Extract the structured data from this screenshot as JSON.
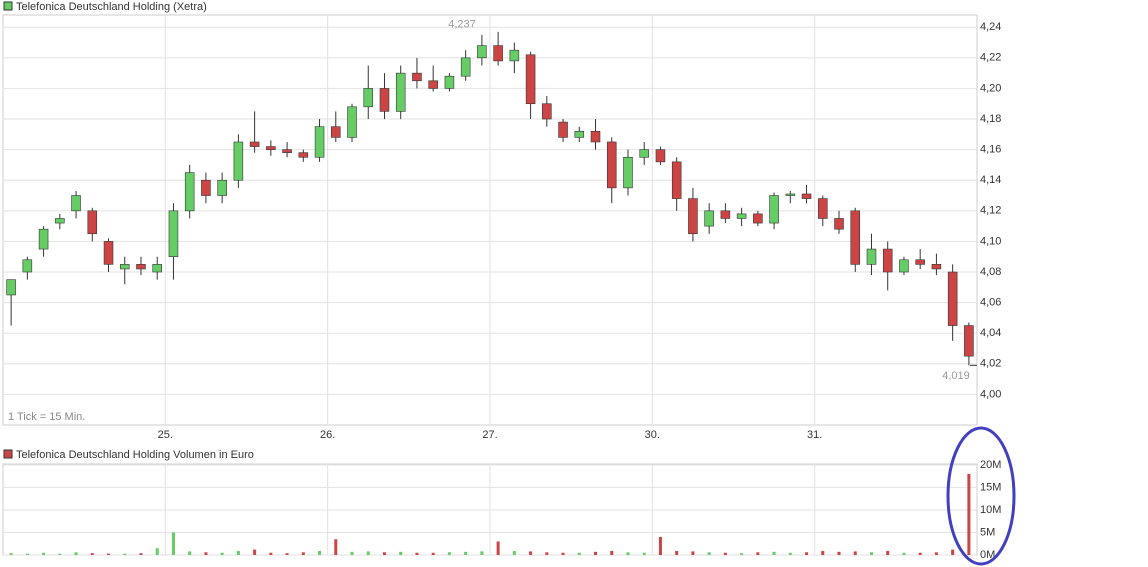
{
  "chart_data": [
    {
      "type": "candlestick",
      "title": "Telefonica Deutschland Holding (Xetra)",
      "note": "1 Tick = 15 Min.",
      "x": [
        0.05,
        0.15,
        0.25,
        0.35,
        0.45,
        0.55,
        0.65,
        0.75,
        0.85,
        0.95,
        1.05,
        1.15,
        1.25,
        1.35,
        1.45,
        1.55,
        1.65,
        1.75,
        1.85,
        1.95,
        2.05,
        2.15,
        2.25,
        2.35,
        2.45,
        2.55,
        2.65,
        2.75,
        2.85,
        2.95,
        3.05,
        3.15,
        3.25,
        3.35,
        3.45,
        3.55,
        3.65,
        3.75,
        3.85,
        3.95,
        4.05,
        4.15,
        4.25,
        4.35,
        4.45,
        4.55,
        4.65,
        4.75,
        4.85,
        4.95,
        5.05,
        5.15,
        5.25,
        5.35,
        5.45,
        5.55,
        5.65,
        5.75,
        5.85,
        5.95
      ],
      "open": [
        4.065,
        4.08,
        4.095,
        4.112,
        4.12,
        4.12,
        4.1,
        4.082,
        4.085,
        4.08,
        4.09,
        4.12,
        4.14,
        4.13,
        4.14,
        4.165,
        4.162,
        4.16,
        4.158,
        4.155,
        4.175,
        4.168,
        4.188,
        4.2,
        4.185,
        4.21,
        4.205,
        4.2,
        4.208,
        4.22,
        4.228,
        4.218,
        4.222,
        4.19,
        4.178,
        4.168,
        4.172,
        4.165,
        4.135,
        4.155,
        4.16,
        4.152,
        4.128,
        4.11,
        4.12,
        4.115,
        4.118,
        4.112,
        4.13,
        4.131,
        4.128,
        4.115,
        4.12,
        4.085,
        4.095,
        4.08,
        4.088,
        4.085,
        4.08,
        4.045
      ],
      "high": [
        4.075,
        4.09,
        4.11,
        4.118,
        4.133,
        4.122,
        4.102,
        4.09,
        4.09,
        4.09,
        4.125,
        4.15,
        4.145,
        4.145,
        4.17,
        4.185,
        4.166,
        4.165,
        4.16,
        4.18,
        4.185,
        4.19,
        4.215,
        4.21,
        4.215,
        4.22,
        4.215,
        4.21,
        4.225,
        4.235,
        4.237,
        4.23,
        4.224,
        4.195,
        4.18,
        4.175,
        4.18,
        4.168,
        4.16,
        4.165,
        4.162,
        4.155,
        4.135,
        4.125,
        4.125,
        4.122,
        4.12,
        4.132,
        4.133,
        4.137,
        4.13,
        4.12,
        4.122,
        4.105,
        4.1,
        4.09,
        4.095,
        4.092,
        4.085,
        4.047
      ],
      "low": [
        4.045,
        4.075,
        4.09,
        4.108,
        4.115,
        4.1,
        4.08,
        4.072,
        4.078,
        4.075,
        4.075,
        4.115,
        4.125,
        4.125,
        4.135,
        4.158,
        4.156,
        4.155,
        4.152,
        4.152,
        4.165,
        4.165,
        4.18,
        4.18,
        4.18,
        4.2,
        4.198,
        4.198,
        4.205,
        4.215,
        4.215,
        4.21,
        4.18,
        4.175,
        4.165,
        4.165,
        4.16,
        4.125,
        4.13,
        4.15,
        4.15,
        4.12,
        4.1,
        4.105,
        4.112,
        4.11,
        4.11,
        4.108,
        4.125,
        4.125,
        4.11,
        4.105,
        4.08,
        4.078,
        4.068,
        4.078,
        4.082,
        4.078,
        4.035,
        4.019
      ],
      "close": [
        4.075,
        4.088,
        4.108,
        4.115,
        4.13,
        4.105,
        4.085,
        4.085,
        4.082,
        4.085,
        4.12,
        4.145,
        4.13,
        4.14,
        4.165,
        4.162,
        4.16,
        4.158,
        4.155,
        4.175,
        4.168,
        4.188,
        4.2,
        4.185,
        4.21,
        4.205,
        4.2,
        4.208,
        4.22,
        4.228,
        4.218,
        4.225,
        4.19,
        4.18,
        4.168,
        4.172,
        4.165,
        4.135,
        4.155,
        4.16,
        4.152,
        4.128,
        4.105,
        4.12,
        4.115,
        4.118,
        4.112,
        4.13,
        4.131,
        4.128,
        4.115,
        4.108,
        4.085,
        4.095,
        4.08,
        4.088,
        4.085,
        4.082,
        4.045,
        4.025
      ],
      "up_color": "#66cc66",
      "down_color": "#cc4444",
      "xlim": [
        0,
        6
      ],
      "xticks": [
        {
          "value": 1,
          "label": "25."
        },
        {
          "value": 2,
          "label": "26."
        },
        {
          "value": 3,
          "label": "27."
        },
        {
          "value": 4,
          "label": "30."
        },
        {
          "value": 5,
          "label": "31."
        }
      ],
      "ylim": [
        3.98,
        4.248
      ],
      "yticks": [
        {
          "value": 4.0,
          "label": "4,00"
        },
        {
          "value": 4.02,
          "label": "4,02"
        },
        {
          "value": 4.04,
          "label": "4,04"
        },
        {
          "value": 4.06,
          "label": "4,06"
        },
        {
          "value": 4.08,
          "label": "4,08"
        },
        {
          "value": 4.1,
          "label": "4,10"
        },
        {
          "value": 4.12,
          "label": "4,12"
        },
        {
          "value": 4.14,
          "label": "4,14"
        },
        {
          "value": 4.16,
          "label": "4,16"
        },
        {
          "value": 4.18,
          "label": "4,18"
        },
        {
          "value": 4.2,
          "label": "4,20"
        },
        {
          "value": 4.22,
          "label": "4,22"
        },
        {
          "value": 4.24,
          "label": "4,24"
        }
      ],
      "high_label": {
        "value": 4.237,
        "label": "4,237"
      },
      "low_label": {
        "value": 4.019,
        "label": "4,019"
      },
      "grid": true
    },
    {
      "type": "bar",
      "title": "Telefonica Deutschland Holding Volumen in Euro",
      "x": [
        0.05,
        0.15,
        0.25,
        0.35,
        0.45,
        0.55,
        0.65,
        0.75,
        0.85,
        0.95,
        1.05,
        1.15,
        1.25,
        1.35,
        1.45,
        1.55,
        1.65,
        1.75,
        1.85,
        1.95,
        2.05,
        2.15,
        2.25,
        2.35,
        2.45,
        2.55,
        2.65,
        2.75,
        2.85,
        2.95,
        3.05,
        3.15,
        3.25,
        3.35,
        3.45,
        3.55,
        3.65,
        3.75,
        3.85,
        3.95,
        4.05,
        4.15,
        4.25,
        4.35,
        4.45,
        4.55,
        4.65,
        4.75,
        4.85,
        4.95,
        5.05,
        5.15,
        5.25,
        5.35,
        5.45,
        5.55,
        5.65,
        5.75,
        5.85,
        5.95
      ],
      "values": [
        400000,
        300000,
        500000,
        300000,
        600000,
        400000,
        300000,
        300000,
        400000,
        1500000,
        5000000,
        800000,
        600000,
        500000,
        900000,
        1200000,
        500000,
        400000,
        600000,
        900000,
        3500000,
        700000,
        800000,
        600000,
        700000,
        500000,
        500000,
        600000,
        700000,
        800000,
        3000000,
        900000,
        800000,
        600000,
        500000,
        500000,
        700000,
        900000,
        600000,
        500000,
        4000000,
        900000,
        800000,
        600000,
        500000,
        400000,
        600000,
        700000,
        500000,
        600000,
        900000,
        700000,
        800000,
        600000,
        900000,
        500000,
        500000,
        600000,
        1200000,
        18000000
      ],
      "color": "#cc4444",
      "xlim": [
        0,
        6
      ],
      "xticks": [
        1,
        2,
        3,
        4,
        5
      ],
      "ylim": [
        0,
        20200000
      ],
      "yticks": [
        {
          "value": 0,
          "label": "0M"
        },
        {
          "value": 5000000,
          "label": "5M"
        },
        {
          "value": 10000000,
          "label": "10M"
        },
        {
          "value": 15000000,
          "label": "15M"
        },
        {
          "value": 20000000,
          "label": "20M"
        }
      ],
      "grid": true
    }
  ]
}
